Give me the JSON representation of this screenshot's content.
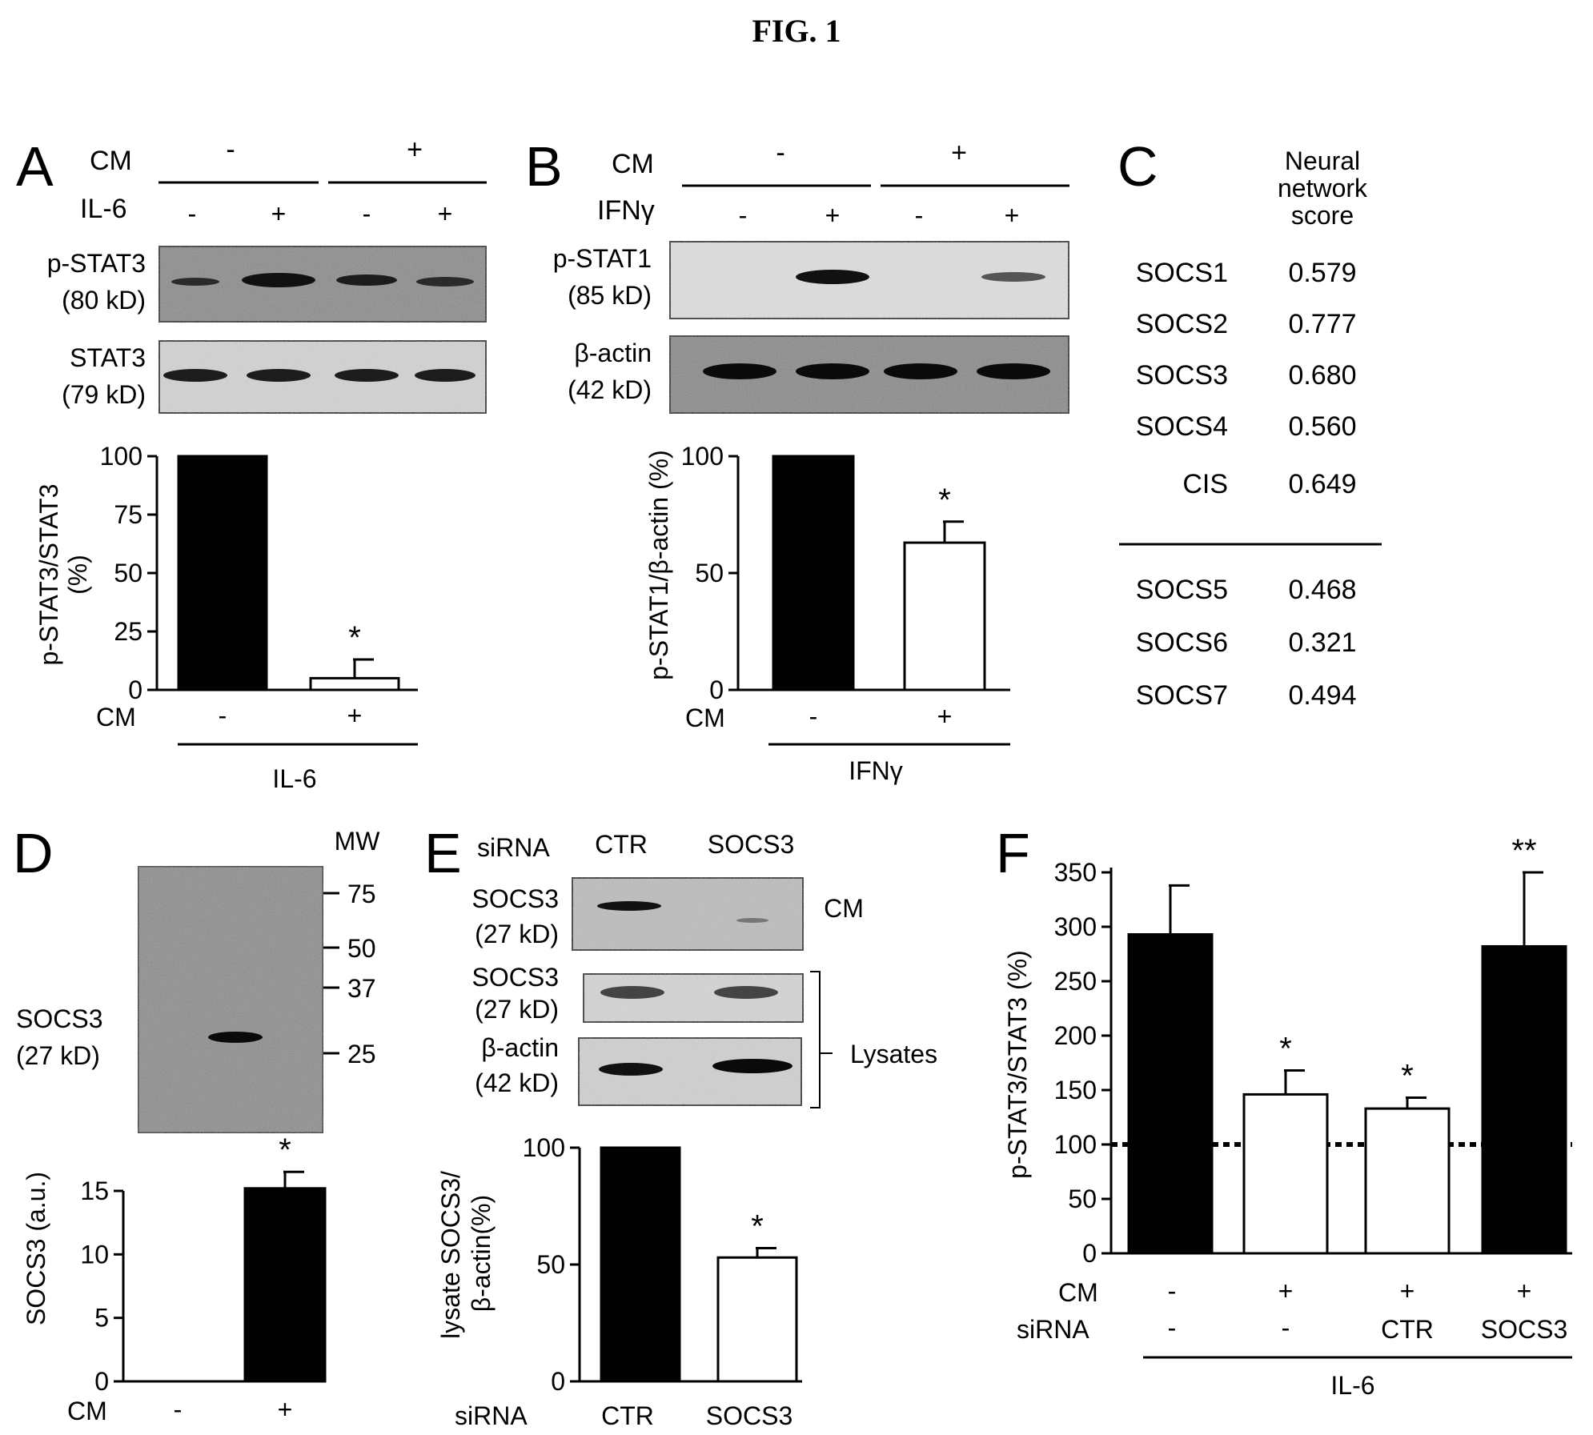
{
  "figure_title": "FIG. 1",
  "panels": {
    "A": {
      "letter": "A",
      "cm_label": "CM",
      "cm_signs": [
        "-",
        "+"
      ],
      "treatment_label": "IL-6",
      "treatment_signs": [
        "-",
        "+",
        "-",
        "+"
      ],
      "blot1_label_1": "p-STAT3",
      "blot1_label_2": "(80 kD)",
      "blot2_label_1": "STAT3",
      "blot2_label_2": "(79 kD)",
      "ylabel_1": "p-STAT3/STAT3",
      "ylabel_2": "(%)",
      "yticks": [
        "100",
        "75",
        "50",
        "25",
        "0"
      ],
      "x_cm_label": "CM",
      "x_cm_signs": [
        "-",
        "+"
      ],
      "x_group_label": "IL-6",
      "star": "*"
    },
    "B": {
      "letter": "B",
      "cm_label": "CM",
      "cm_signs": [
        "-",
        "+"
      ],
      "treatment_label": "IFNγ",
      "treatment_signs": [
        "-",
        "+",
        "-",
        "+"
      ],
      "blot1_label_1": "p-STAT1",
      "blot1_label_2": "(85 kD)",
      "blot2_label_1": "β-actin",
      "blot2_label_2": "(42 kD)",
      "ylabel": "p-STAT1/β-actin (%)",
      "yticks": [
        "100",
        "50",
        "0"
      ],
      "x_cm_label": "CM",
      "x_cm_signs": [
        "-",
        "+"
      ],
      "x_group_label": "IFNγ",
      "star": "*"
    },
    "C": {
      "letter": "C",
      "header_1": "Neural",
      "header_2": "network",
      "header_3": "score",
      "rows_top": [
        {
          "name": "SOCS1",
          "score": "0.579"
        },
        {
          "name": "SOCS2",
          "score": "0.777"
        },
        {
          "name": "SOCS3",
          "score": "0.680"
        },
        {
          "name": "SOCS4",
          "score": "0.560"
        },
        {
          "name": "CIS",
          "score": "0.649"
        }
      ],
      "rows_bottom": [
        {
          "name": "SOCS5",
          "score": "0.468"
        },
        {
          "name": "SOCS6",
          "score": "0.321"
        },
        {
          "name": "SOCS7",
          "score": "0.494"
        }
      ]
    },
    "D": {
      "letter": "D",
      "mw_label": "MW",
      "mw_markers": [
        "75",
        "50",
        "37",
        "25"
      ],
      "blot_label_1": "SOCS3",
      "blot_label_2": "(27 kD)",
      "ylabel": "SOCS3 (a.u.)",
      "yticks": [
        "15",
        "10",
        "5",
        "0"
      ],
      "x_cm_label": "CM",
      "x_cm_signs": [
        "-",
        "+"
      ],
      "star": "*"
    },
    "E": {
      "letter": "E",
      "sirna_label": "siRNA",
      "lane_labels": [
        "CTR",
        "SOCS3"
      ],
      "blot1_label_1": "SOCS3",
      "blot1_label_2": "(27 kD)",
      "blot1_side": "CM",
      "blot2_label_1": "SOCS3",
      "blot2_label_2": "(27 kD)",
      "blot3_label_1": "β-actin",
      "blot3_label_2": "(42 kD)",
      "lysates_label": "Lysates",
      "ylabel_1": "lysate SOCS3/",
      "ylabel_2": "β-actin(%)",
      "yticks": [
        "100",
        "50",
        "0"
      ],
      "x_sirna_label": "siRNA",
      "x_labels": [
        "CTR",
        "SOCS3"
      ],
      "star": "*"
    },
    "F": {
      "letter": "F",
      "ylabel": "p-STAT3/STAT3 (%)",
      "yticks": [
        "350",
        "300",
        "250",
        "200",
        "150",
        "100",
        "50",
        "0"
      ],
      "cm_label": "CM",
      "cm_signs": [
        "-",
        "+",
        "+",
        "+"
      ],
      "sirna_label": "siRNA",
      "sirna_signs": [
        "-",
        "-",
        "CTR",
        "SOCS3"
      ],
      "group_label": "IL-6",
      "stars": [
        "",
        "*",
        "*",
        "**"
      ]
    }
  },
  "chart_data": [
    {
      "panel": "A",
      "type": "bar",
      "categories": [
        "-",
        "+"
      ],
      "values": [
        100,
        5
      ],
      "errors": [
        0,
        8
      ],
      "colors": [
        "#000000",
        "#ffffff"
      ],
      "ylim": [
        0,
        100
      ],
      "ylabel": "p-STAT3/STAT3 (%)"
    },
    {
      "panel": "B",
      "type": "bar",
      "categories": [
        "-",
        "+"
      ],
      "values": [
        100,
        63
      ],
      "errors": [
        0,
        9
      ],
      "colors": [
        "#000000",
        "#ffffff"
      ],
      "ylim": [
        0,
        100
      ],
      "ylabel": "p-STAT1/β-actin (%)"
    },
    {
      "panel": "D",
      "type": "bar",
      "categories": [
        "-",
        "+"
      ],
      "values": [
        0,
        15.2
      ],
      "errors": [
        0,
        1.3
      ],
      "colors": [
        "#000000",
        "#000000"
      ],
      "ylim": [
        0,
        15
      ],
      "ylabel": "SOCS3 (a.u.)"
    },
    {
      "panel": "E",
      "type": "bar",
      "categories": [
        "CTR",
        "SOCS3"
      ],
      "values": [
        100,
        53
      ],
      "errors": [
        0,
        4
      ],
      "colors": [
        "#000000",
        "#ffffff"
      ],
      "ylim": [
        0,
        100
      ],
      "ylabel": "lysate SOCS3/β-actin(%)"
    },
    {
      "panel": "F",
      "type": "bar",
      "categories": [
        "- / -",
        "+ / -",
        "+ / CTR",
        "+ / SOCS3"
      ],
      "values": [
        293,
        146,
        133,
        282
      ],
      "errors": [
        45,
        22,
        10,
        68
      ],
      "colors": [
        "#000000",
        "#ffffff",
        "#ffffff",
        "#000000"
      ],
      "ylim": [
        0,
        350
      ],
      "reference_line": 100,
      "ylabel": "p-STAT3/STAT3 (%)"
    }
  ]
}
